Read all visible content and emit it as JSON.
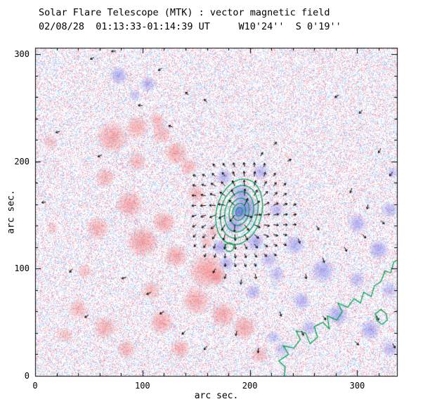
{
  "chart_data": {
    "type": "heatmap",
    "title": "Solar Flare Telescope (MTK) : vector magnetic field",
    "subtitle": "02/08/28  01:13:33-01:14:39 UT     W10'24''  S 0'19''",
    "xlabel": "arc sec.",
    "ylabel": "arc sec.",
    "xlim": [
      0,
      337
    ],
    "ylim": [
      0,
      306
    ],
    "xticks": [
      0,
      100,
      200,
      300
    ],
    "yticks": [
      0,
      100,
      200,
      300
    ],
    "minor_tick_step": 20,
    "colors": {
      "negative_polarity": "#F25F5F",
      "positive_polarity": "#6464E8",
      "contour": "#00A551",
      "vectors": "#000000",
      "axes": "#000000",
      "background": "#FFFFFF"
    },
    "noise_density": 0.45,
    "polarity_regions": {
      "negative_red": [
        [
          72,
          222,
          16,
          0.5
        ],
        [
          95,
          232,
          12,
          0.45
        ],
        [
          114,
          238,
          8,
          0.4
        ],
        [
          118,
          226,
          10,
          0.4
        ],
        [
          131,
          208,
          12,
          0.5
        ],
        [
          65,
          185,
          10,
          0.4
        ],
        [
          88,
          160,
          14,
          0.5
        ],
        [
          58,
          138,
          12,
          0.45
        ],
        [
          100,
          125,
          16,
          0.55
        ],
        [
          120,
          143,
          12,
          0.5
        ],
        [
          131,
          112,
          12,
          0.5
        ],
        [
          150,
          170,
          9,
          0.4
        ],
        [
          143,
          195,
          9,
          0.4
        ],
        [
          160,
          98,
          18,
          0.55
        ],
        [
          150,
          70,
          14,
          0.5
        ],
        [
          175,
          57,
          13,
          0.5
        ],
        [
          118,
          50,
          12,
          0.5
        ],
        [
          65,
          45,
          12,
          0.45
        ],
        [
          40,
          62,
          10,
          0.4
        ],
        [
          28,
          38,
          8,
          0.35
        ],
        [
          85,
          25,
          10,
          0.4
        ],
        [
          135,
          25,
          10,
          0.45
        ],
        [
          195,
          45,
          12,
          0.5
        ],
        [
          46,
          98,
          8,
          0.35
        ],
        [
          16,
          138,
          6,
          0.3
        ],
        [
          14,
          218,
          8,
          0.3
        ],
        [
          108,
          80,
          10,
          0.4
        ],
        [
          95,
          200,
          10,
          0.4
        ],
        [
          170,
          92,
          9,
          0.45
        ],
        [
          209,
          20,
          9,
          0.4
        ],
        [
          160,
          125,
          7,
          0.35
        ],
        [
          165,
          135,
          7,
          0.35
        ]
      ],
      "positive_blue": [
        [
          78,
          280,
          9,
          0.5
        ],
        [
          105,
          272,
          8,
          0.45
        ],
        [
          93,
          262,
          6,
          0.35
        ],
        [
          196,
          156,
          13,
          0.7
        ],
        [
          192,
          170,
          10,
          0.55
        ],
        [
          186,
          141,
          10,
          0.55
        ],
        [
          176,
          186,
          8,
          0.45
        ],
        [
          205,
          125,
          9,
          0.5
        ],
        [
          225,
          155,
          8,
          0.4
        ],
        [
          242,
          122,
          10,
          0.45
        ],
        [
          268,
          98,
          12,
          0.5
        ],
        [
          300,
          142,
          10,
          0.45
        ],
        [
          320,
          118,
          10,
          0.5
        ],
        [
          330,
          155,
          8,
          0.45
        ],
        [
          282,
          57,
          10,
          0.5
        ],
        [
          312,
          43,
          10,
          0.5
        ],
        [
          248,
          70,
          9,
          0.45
        ],
        [
          203,
          78,
          8,
          0.4
        ],
        [
          225,
          95,
          8,
          0.4
        ],
        [
          330,
          80,
          8,
          0.4
        ],
        [
          300,
          90,
          8,
          0.4
        ],
        [
          255,
          45,
          8,
          0.4
        ],
        [
          230,
          25,
          8,
          0.35
        ],
        [
          330,
          25,
          8,
          0.4
        ],
        [
          210,
          190,
          8,
          0.45
        ],
        [
          218,
          108,
          8,
          0.4
        ],
        [
          333,
          190,
          6,
          0.35
        ],
        [
          172,
          120,
          8,
          0.5
        ],
        [
          178,
          105,
          7,
          0.45
        ],
        [
          222,
          36,
          7,
          0.35
        ],
        [
          190,
          153,
          7,
          0.8
        ]
      ]
    },
    "contours": {
      "center": [
        190,
        153
      ],
      "rotation_deg": 15,
      "levels_rx_ry": [
        [
          3,
          4
        ],
        [
          6,
          8
        ],
        [
          9,
          13
        ],
        [
          13,
          19
        ],
        [
          17,
          25
        ],
        [
          21,
          31
        ]
      ],
      "extra_circle": {
        "center": [
          181,
          120
        ],
        "r": 4
      }
    },
    "neutral_line": [
      [
        232,
        0
      ],
      [
        233,
        8
      ],
      [
        227,
        14
      ],
      [
        236,
        20
      ],
      [
        231,
        28
      ],
      [
        241,
        26
      ],
      [
        247,
        34
      ],
      [
        243,
        42
      ],
      [
        252,
        40
      ],
      [
        256,
        30
      ],
      [
        263,
        36
      ],
      [
        260,
        46
      ],
      [
        268,
        50
      ],
      [
        274,
        44
      ],
      [
        272,
        56
      ],
      [
        281,
        52
      ],
      [
        286,
        60
      ],
      [
        282,
        68
      ],
      [
        291,
        64
      ],
      [
        297,
        72
      ],
      [
        303,
        68
      ],
      [
        306,
        78
      ],
      [
        313,
        74
      ],
      [
        316,
        84
      ],
      [
        322,
        88
      ],
      [
        326,
        98
      ],
      [
        331,
        96
      ],
      [
        334,
        106
      ],
      [
        337,
        108
      ]
    ],
    "neutral_loop": [
      [
        318,
        52
      ],
      [
        323,
        48
      ],
      [
        328,
        52
      ],
      [
        327,
        58
      ],
      [
        322,
        62
      ],
      [
        317,
        58
      ],
      [
        318,
        52
      ]
    ],
    "vector_cluster": {
      "center": [
        190,
        153
      ],
      "x0": 150,
      "x1": 248,
      "y0": 96,
      "y1": 202,
      "spacing": 9,
      "max_radius": 52,
      "twist_deg": 15
    },
    "scattered_arrows": [
      [
        55,
        297,
        205,
        6
      ],
      [
        75,
        303,
        185,
        6
      ],
      [
        118,
        287,
        215,
        6
      ],
      [
        143,
        262,
        140,
        6
      ],
      [
        160,
        255,
        130,
        6
      ],
      [
        23,
        228,
        195,
        6
      ],
      [
        100,
        252,
        175,
        6
      ],
      [
        128,
        232,
        160,
        6
      ],
      [
        62,
        206,
        205,
        6
      ],
      [
        10,
        162,
        185,
        6
      ],
      [
        283,
        262,
        210,
        7
      ],
      [
        305,
        248,
        225,
        7
      ],
      [
        322,
        212,
        240,
        7
      ],
      [
        333,
        190,
        230,
        7
      ],
      [
        295,
        175,
        250,
        7
      ],
      [
        310,
        160,
        260,
        7
      ],
      [
        322,
        145,
        315,
        7
      ],
      [
        305,
        132,
        310,
        7
      ],
      [
        288,
        120,
        300,
        7
      ],
      [
        268,
        110,
        285,
        7
      ],
      [
        252,
        95,
        275,
        7
      ],
      [
        245,
        128,
        290,
        7
      ],
      [
        262,
        140,
        300,
        7
      ],
      [
        35,
        100,
        230,
        7
      ],
      [
        50,
        57,
        215,
        7
      ],
      [
        85,
        92,
        195,
        7
      ],
      [
        108,
        78,
        205,
        7
      ],
      [
        120,
        60,
        210,
        7
      ],
      [
        140,
        42,
        225,
        7
      ],
      [
        160,
        28,
        235,
        7
      ],
      [
        188,
        42,
        255,
        7
      ],
      [
        208,
        26,
        265,
        7
      ],
      [
        228,
        60,
        285,
        7
      ],
      [
        248,
        42,
        295,
        7
      ],
      [
        268,
        56,
        305,
        7
      ],
      [
        298,
        32,
        315,
        7
      ],
      [
        318,
        56,
        295,
        7
      ],
      [
        333,
        30,
        300,
        7
      ],
      [
        178,
        95,
        250,
        7
      ],
      [
        192,
        90,
        265,
        7
      ],
      [
        205,
        95,
        280,
        7
      ],
      [
        168,
        100,
        240,
        7
      ],
      [
        210,
        205,
        60,
        6
      ],
      [
        222,
        215,
        45,
        6
      ],
      [
        235,
        200,
        30,
        6
      ]
    ]
  }
}
